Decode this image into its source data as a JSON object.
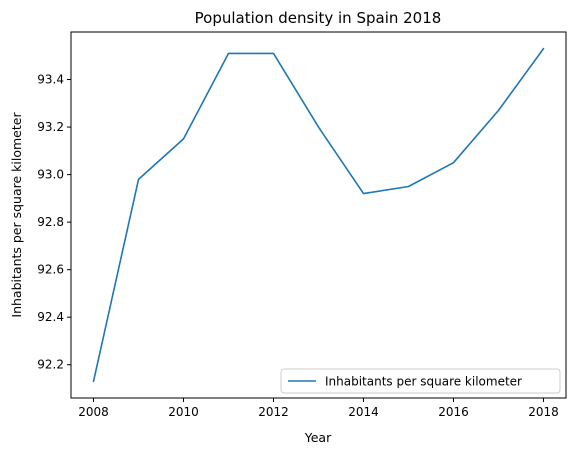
{
  "chart_data": {
    "type": "line",
    "title": "Population density in Spain 2018",
    "xlabel": "Year",
    "ylabel": "Inhabitants per square kilometer",
    "x": [
      2008,
      2009,
      2010,
      2011,
      2012,
      2013,
      2014,
      2015,
      2016,
      2017,
      2018
    ],
    "series": [
      {
        "name": "Inhabitants per square kilometer",
        "color": "#1f77b4",
        "values": [
          92.13,
          92.98,
          93.15,
          93.51,
          93.51,
          93.2,
          92.92,
          92.95,
          93.05,
          93.27,
          93.53
        ]
      }
    ],
    "xlim": [
      2007.5,
      2018.5
    ],
    "ylim": [
      92.06,
      93.6
    ],
    "xticks": [
      2008,
      2010,
      2012,
      2014,
      2016,
      2018
    ],
    "yticks": [
      "92.2",
      "92.4",
      "92.6",
      "92.8",
      "93.0",
      "93.2",
      "93.4"
    ],
    "grid": false,
    "legend_position": "lower-right"
  }
}
